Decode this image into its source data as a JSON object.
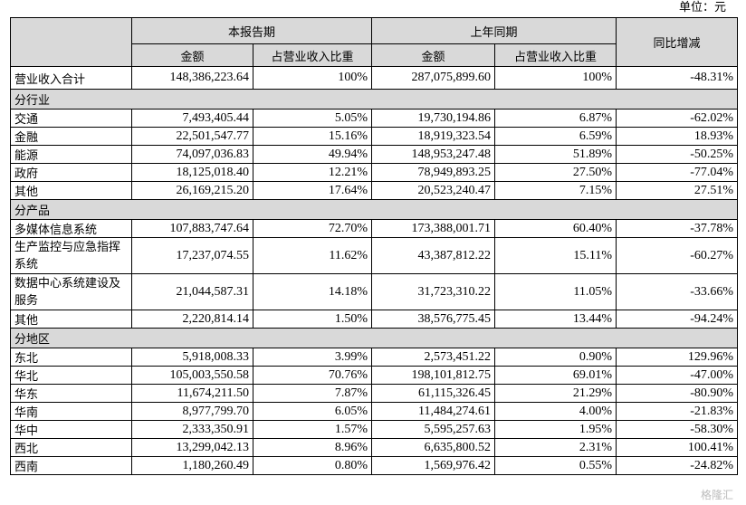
{
  "unit_label": "单位：元",
  "headers": {
    "current_period": "本报告期",
    "prior_period": "上年同期",
    "yoy_change": "同比增减",
    "amount": "金额",
    "share": "占营业收入比重"
  },
  "total": {
    "label": "营业收入合计",
    "current_amount": "148,386,223.64",
    "current_share": "100%",
    "prior_amount": "287,075,899.60",
    "prior_share": "100%",
    "yoy": "-48.31%"
  },
  "sections": [
    {
      "title": "分行业",
      "rows": [
        {
          "label": "交通",
          "current_amount": "7,493,405.44",
          "current_share": "5.05%",
          "prior_amount": "19,730,194.86",
          "prior_share": "6.87%",
          "yoy": "-62.02%"
        },
        {
          "label": "金融",
          "current_amount": "22,501,547.77",
          "current_share": "15.16%",
          "prior_amount": "18,919,323.54",
          "prior_share": "6.59%",
          "yoy": "18.93%"
        },
        {
          "label": "能源",
          "current_amount": "74,097,036.83",
          "current_share": "49.94%",
          "prior_amount": "148,953,247.48",
          "prior_share": "51.89%",
          "yoy": "-50.25%"
        },
        {
          "label": "政府",
          "current_amount": "18,125,018.40",
          "current_share": "12.21%",
          "prior_amount": "78,949,893.25",
          "prior_share": "27.50%",
          "yoy": "-77.04%"
        },
        {
          "label": "其他",
          "current_amount": "26,169,215.20",
          "current_share": "17.64%",
          "prior_amount": "20,523,240.47",
          "prior_share": "7.15%",
          "yoy": "27.51%"
        }
      ]
    },
    {
      "title": "分产品",
      "rows": [
        {
          "label": "多媒体信息系统",
          "current_amount": "107,883,747.64",
          "current_share": "72.70%",
          "prior_amount": "173,388,001.71",
          "prior_share": "60.40%",
          "yoy": "-37.78%"
        },
        {
          "label": "生产监控与应急指挥系统",
          "current_amount": "17,237,074.55",
          "current_share": "11.62%",
          "prior_amount": "43,387,812.22",
          "prior_share": "15.11%",
          "yoy": "-60.27%"
        },
        {
          "label": "数据中心系统建设及服务",
          "current_amount": "21,044,587.31",
          "current_share": "14.18%",
          "prior_amount": "31,723,310.22",
          "prior_share": "11.05%",
          "yoy": "-33.66%"
        },
        {
          "label": "其他",
          "current_amount": "2,220,814.14",
          "current_share": "1.50%",
          "prior_amount": "38,576,775.45",
          "prior_share": "13.44%",
          "yoy": "-94.24%"
        }
      ]
    },
    {
      "title": "分地区",
      "rows": [
        {
          "label": "东北",
          "current_amount": "5,918,008.33",
          "current_share": "3.99%",
          "prior_amount": "2,573,451.22",
          "prior_share": "0.90%",
          "yoy": "129.96%"
        },
        {
          "label": "华北",
          "current_amount": "105,003,550.58",
          "current_share": "70.76%",
          "prior_amount": "198,101,812.75",
          "prior_share": "69.01%",
          "yoy": "-47.00%"
        },
        {
          "label": "华东",
          "current_amount": "11,674,211.50",
          "current_share": "7.87%",
          "prior_amount": "61,115,326.45",
          "prior_share": "21.29%",
          "yoy": "-80.90%"
        },
        {
          "label": "华南",
          "current_amount": "8,977,799.70",
          "current_share": "6.05%",
          "prior_amount": "11,484,274.61",
          "prior_share": "4.00%",
          "yoy": "-21.83%"
        },
        {
          "label": "华中",
          "current_amount": "2,333,350.91",
          "current_share": "1.57%",
          "prior_amount": "5,595,257.63",
          "prior_share": "1.95%",
          "yoy": "-58.30%"
        },
        {
          "label": "西北",
          "current_amount": "13,299,042.13",
          "current_share": "8.96%",
          "prior_amount": "6,635,800.52",
          "prior_share": "2.31%",
          "yoy": "100.41%"
        },
        {
          "label": "西南",
          "current_amount": "1,180,260.49",
          "current_share": "0.80%",
          "prior_amount": "1,569,976.42",
          "prior_share": "0.55%",
          "yoy": "-24.82%"
        }
      ]
    }
  ]
}
